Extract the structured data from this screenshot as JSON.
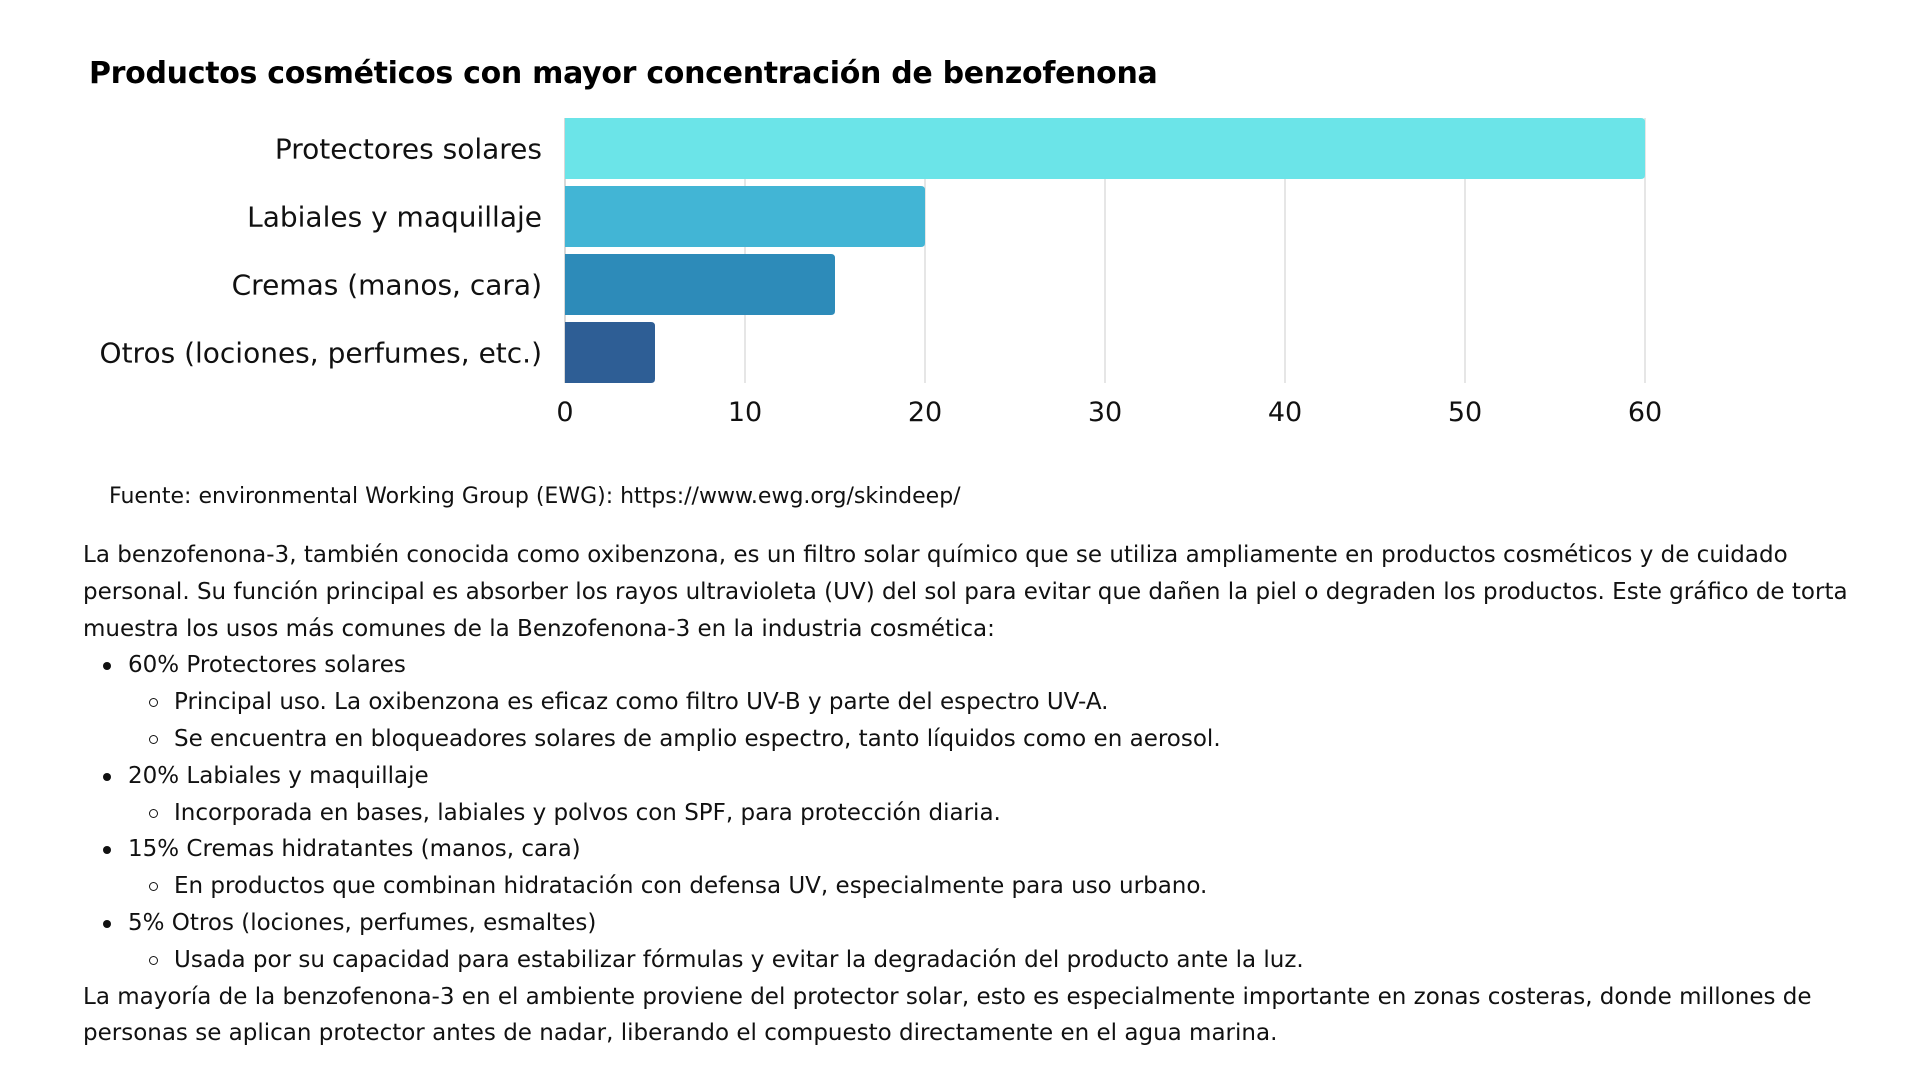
{
  "chart_data": {
    "type": "bar",
    "orientation": "horizontal",
    "title": "Productos cosméticos con mayor concentración de benzofenona",
    "categories": [
      "Protectores solares",
      "Labiales y maquillaje",
      "Cremas (manos, cara)",
      "Otros (lociones, perfumes, etc.)"
    ],
    "values": [
      60,
      20,
      15,
      5
    ],
    "colors": [
      "#6BE4E8",
      "#42B5D5",
      "#2D8BB9",
      "#2E5E95"
    ],
    "xlabel": "",
    "ylabel": "",
    "xlim": [
      0,
      60
    ],
    "xticks": [
      0,
      10,
      20,
      30,
      40,
      50,
      60
    ],
    "xtick_labels": [
      "0",
      "10",
      "20",
      "30",
      "40",
      "50",
      "60"
    ],
    "grid": true,
    "gridline_color": "#dddddd",
    "legend": "none"
  },
  "source": "Fuente: environmental Working Group (EWG): https://www.ewg.org/skindeep/",
  "body": {
    "intro": "La benzofenona-3, también conocida como oxibenzona, es un filtro solar químico que se utiliza ampliamente en productos cosméticos y de cuidado personal. Su función principal es absorber los rayos ultravioleta (UV) del sol para evitar que dañen la piel o degraden los productos. Este gráfico de torta muestra los usos más comunes de la Benzofenona-3 en la industria cosmética:",
    "items": [
      {
        "label": "60% Protectores solares",
        "sub": [
          "Principal uso. La oxibenzona es eficaz como filtro UV-B y parte del espectro UV-A.",
          "Se encuentra en bloqueadores solares de amplio espectro, tanto líquidos como en aerosol."
        ]
      },
      {
        "label": "20% Labiales y maquillaje",
        "sub": [
          "Incorporada en bases, labiales y polvos con SPF, para protección diaria."
        ]
      },
      {
        "label": "15% Cremas hidratantes (manos, cara)",
        "sub": [
          "En productos que combinan hidratación con defensa UV, especialmente para uso urbano."
        ]
      },
      {
        "label": "5% Otros (lociones, perfumes, esmaltes)",
        "sub": [
          "Usada por su capacidad para estabilizar fórmulas y evitar la degradación del producto ante la luz."
        ]
      }
    ],
    "outro": "La mayoría de la benzofenona-3 en el ambiente proviene del protector solar, esto es especialmente importante en zonas costeras, donde millones de personas se aplican protector antes de nadar, liberando el compuesto directamente en el agua marina."
  }
}
